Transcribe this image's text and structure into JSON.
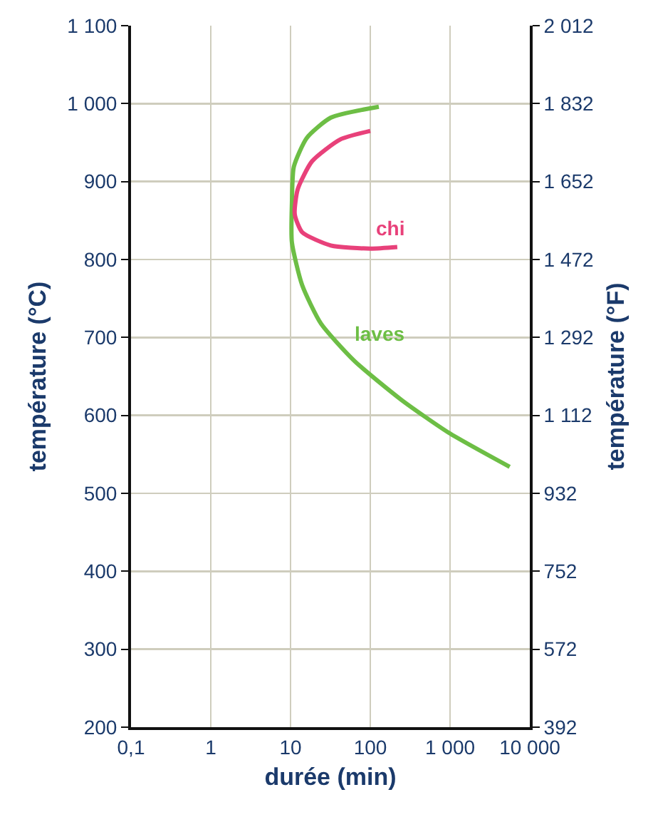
{
  "chart_data": {
    "type": "line",
    "xlabel": "durée (min)",
    "ylabel": "température (°C)",
    "y2label": "température (°F)",
    "log": "x",
    "grid": true,
    "legend": false,
    "marker": "none",
    "line_style": "solid",
    "xlim": [
      0.1,
      10000
    ],
    "xticks": [
      {
        "value": 0.1,
        "label": "0,1"
      },
      1,
      10,
      100,
      {
        "value": 1000,
        "label": "1 000"
      },
      {
        "value": 10000,
        "label": "10 000"
      }
    ],
    "ylim": [
      200,
      1100
    ],
    "yticks": [
      200,
      300,
      400,
      500,
      600,
      700,
      800,
      900,
      {
        "value": 1000,
        "label": "1 000"
      },
      {
        "value": 1100,
        "label": "1 100"
      }
    ],
    "y2lim": [
      392,
      2012
    ],
    "y2ticks": [
      392,
      572,
      752,
      932,
      {
        "value": 1112,
        "label": "1 112"
      },
      {
        "value": 1292,
        "label": "1 292"
      },
      {
        "value": 1472,
        "label": "1 472"
      },
      {
        "value": 1652,
        "label": "1 652"
      },
      {
        "value": 1832,
        "label": "1 832"
      },
      {
        "value": 2012,
        "label": "2 012"
      }
    ],
    "series": [
      {
        "name": "laves",
        "color": "#6dbe45",
        "x": [
          128,
          32,
          16,
          11,
          10.4,
          10.4,
          14,
          24,
          63,
          245,
          955,
          5600
        ],
        "values": [
          996,
          982,
          956,
          919,
          871,
          822,
          767,
          718,
          670,
          620,
          578,
          534
        ]
      },
      {
        "name": "chi",
        "color": "#e8417a",
        "x": [
          100,
          42,
          18.6,
          12.3,
          11.3,
          14,
          32,
          100,
          218
        ],
        "values": [
          965,
          954,
          926,
          890,
          858,
          835,
          818,
          814,
          816
        ]
      }
    ]
  }
}
